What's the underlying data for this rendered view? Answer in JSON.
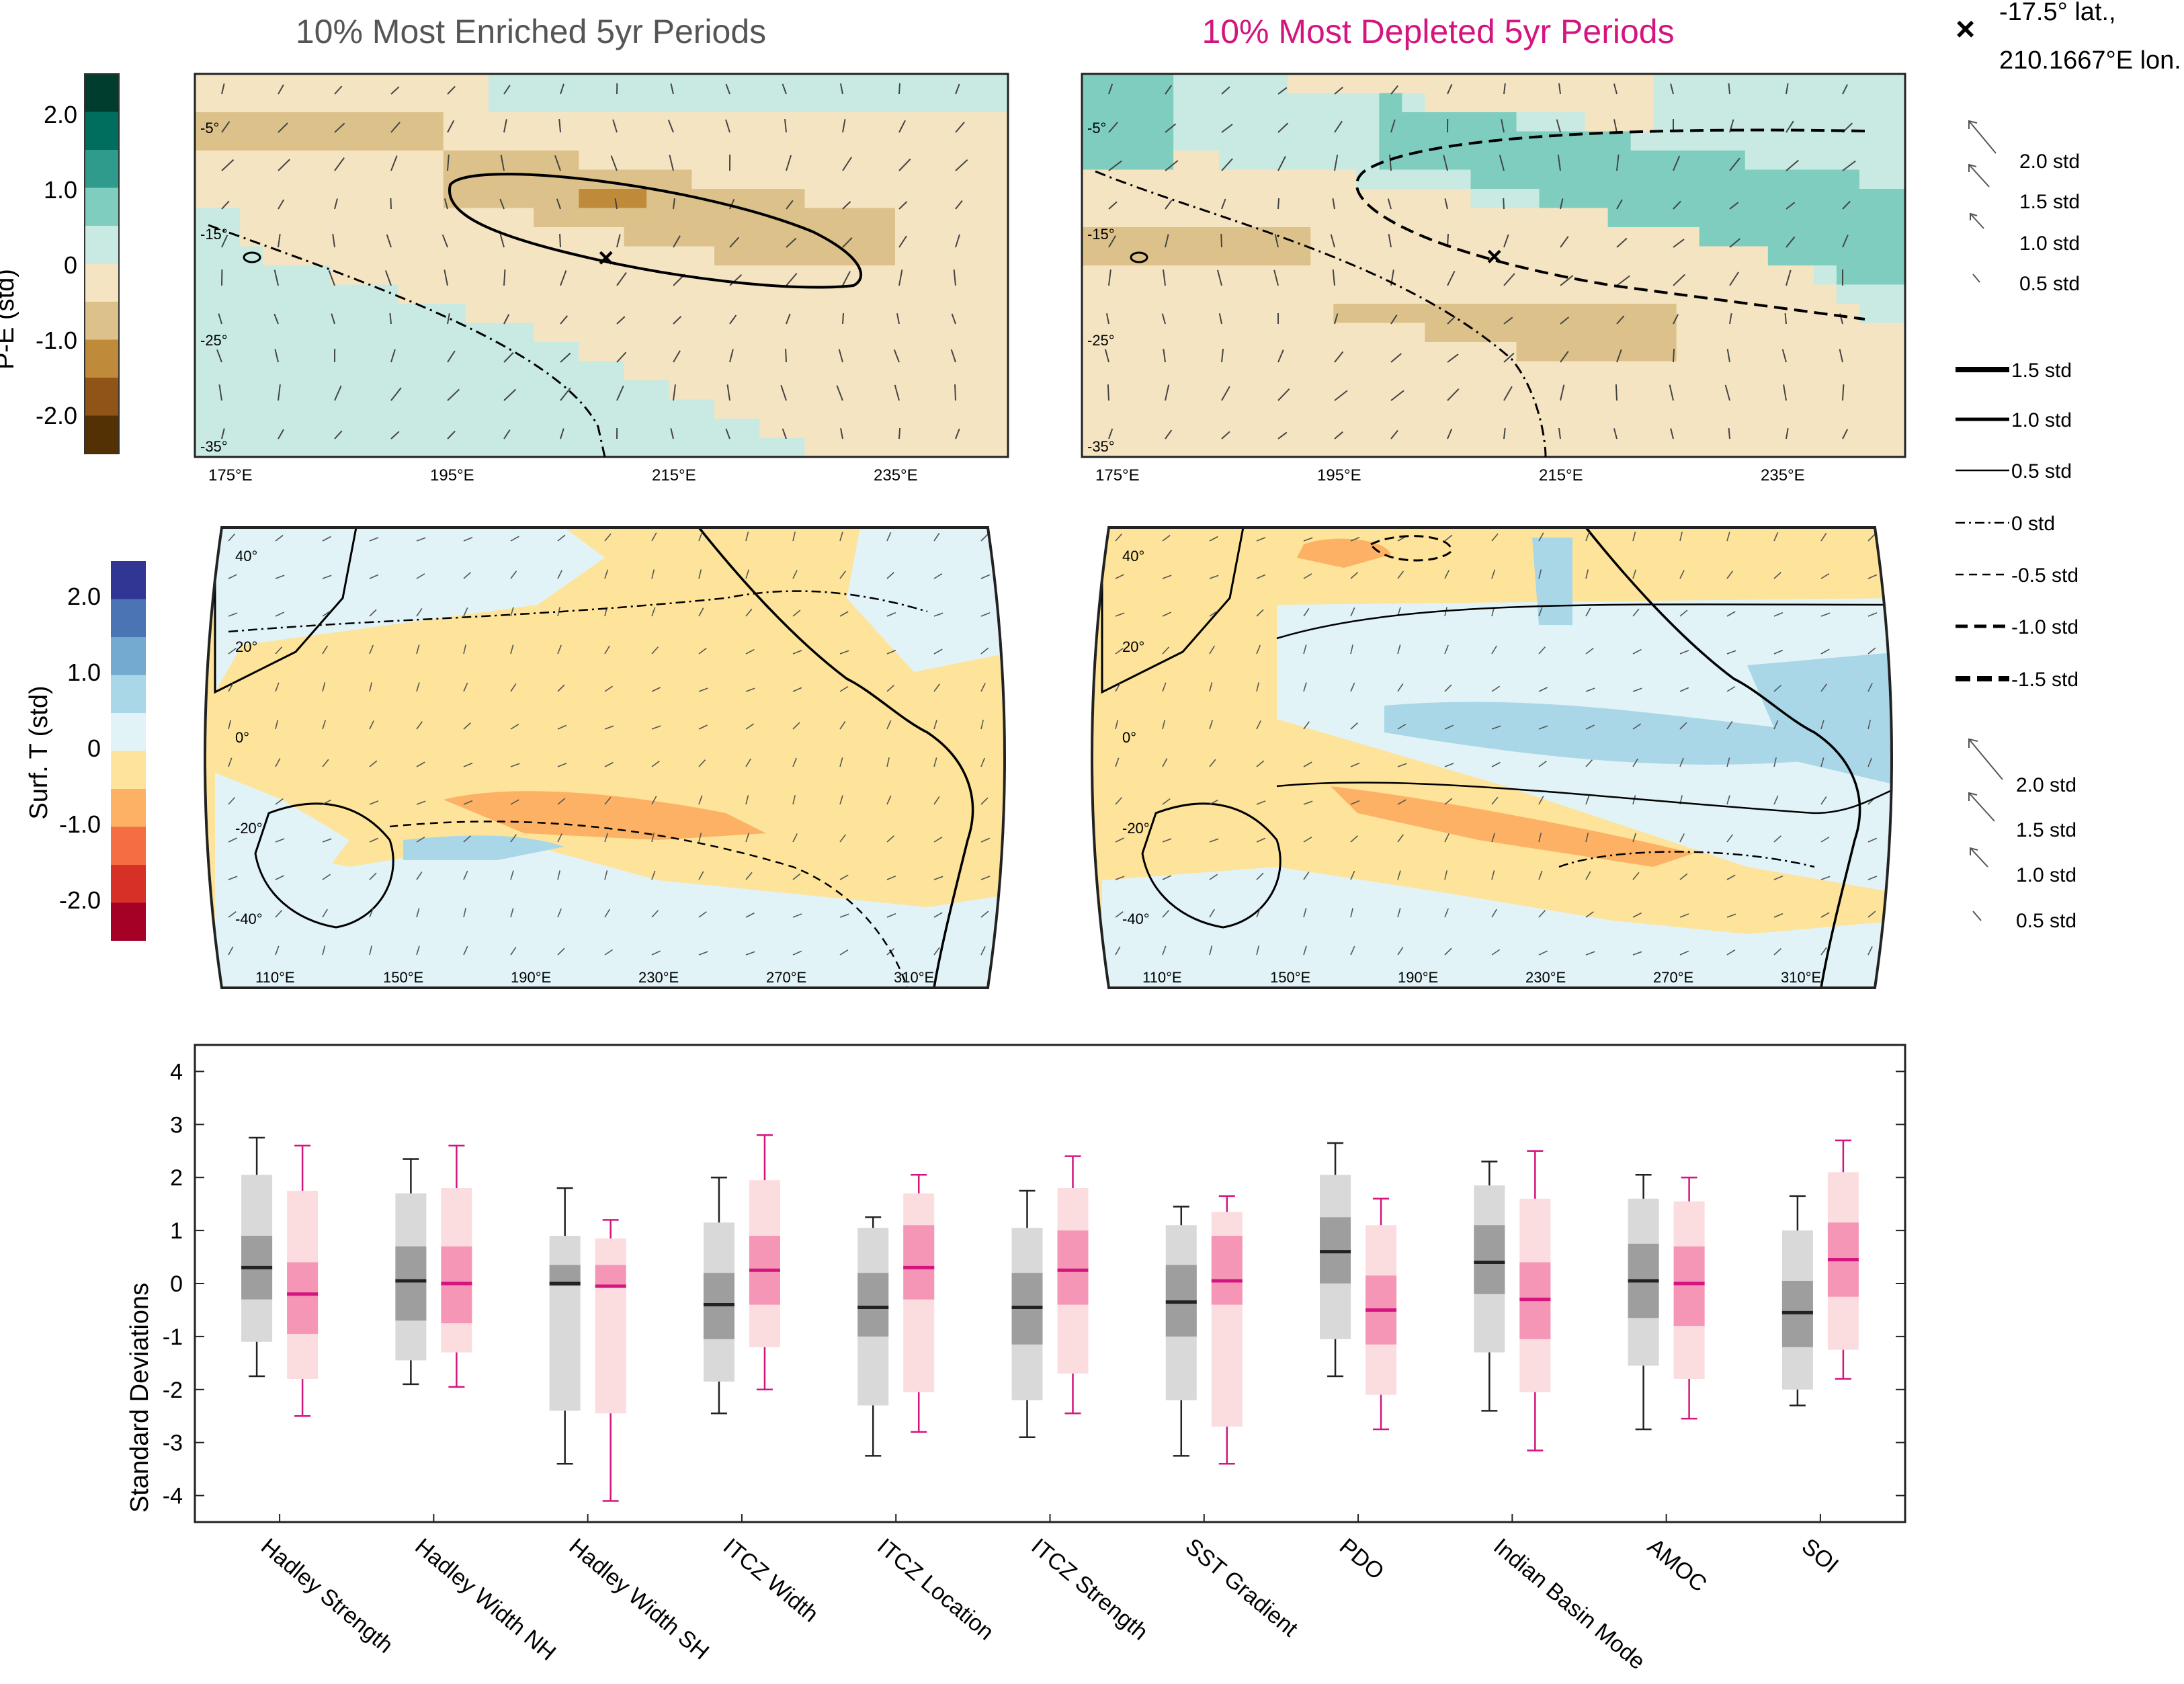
{
  "titles": {
    "enriched": "10% Most Enriched 5yr Periods",
    "depleted": "10% Most Depleted 5yr Periods"
  },
  "colors": {
    "enriched": "#222222",
    "enriched_light_box": "#d9d9d9",
    "enriched_dark_box": "#9e9e9e",
    "depleted": "#d4147f",
    "depleted_light_box": "#fbdde0",
    "depleted_dark_box": "#f596b6"
  },
  "pe_colorbar": {
    "label": "P-E (std)",
    "ticks": [
      "2.0",
      "1.0",
      "0",
      "-1.0",
      "-2.0"
    ],
    "colors": [
      "#003d2e",
      "#006e5e",
      "#2f9b8c",
      "#7fcdbf",
      "#c8eae3",
      "#f5e4c2",
      "#dcc28a",
      "#bf8a3a",
      "#8f5416",
      "#543005"
    ]
  },
  "sst_colorbar": {
    "label": "Surf. T (std)",
    "ticks": [
      "2.0",
      "1.0",
      "0",
      "-1.0",
      "-2.0"
    ],
    "colors": [
      "#313695",
      "#4a74b4",
      "#74aad0",
      "#a9d7e8",
      "#e1f3f7",
      "#fde49a",
      "#fdb164",
      "#f46d43",
      "#d73027",
      "#a50026"
    ]
  },
  "pe_map": {
    "lat_ticks": [
      "-5°",
      "-15°",
      "-25°",
      "-35°"
    ],
    "lon_ticks": [
      "175°E",
      "195°E",
      "215°E",
      "235°E"
    ]
  },
  "sst_map": {
    "lat_ticks": [
      "40°",
      "20°",
      "0°",
      "-20°",
      "-40°"
    ],
    "lon_ticks": [
      "110°E",
      "150°E",
      "190°E",
      "230°E",
      "270°E",
      "310°E"
    ]
  },
  "marker_legend": {
    "symbol": "×",
    "line1": "-17.5° lat.,",
    "line2": "210.1667°E lon."
  },
  "wind_legend_top": [
    "2.0 std",
    "1.5 std",
    "1.0 std",
    "0.5 std"
  ],
  "contour_legend": [
    "1.5 std",
    "1.0 std",
    "0.5 std",
    "0 std",
    "-0.5 std",
    "-1.0 std",
    "-1.5 std"
  ],
  "wind_legend_bottom": [
    "2.0 std",
    "1.5 std",
    "1.0 std",
    "0.5 std"
  ],
  "chart_data": {
    "type": "boxplot",
    "ylabel": "Standard Deviations",
    "ylim": [
      -4.5,
      4.5
    ],
    "yticks": [
      4,
      3,
      2,
      1,
      0,
      -1,
      -2,
      -3,
      -4
    ],
    "categories": [
      "Hadley Strength",
      "Hadley Width NH",
      "Hadley Width SH",
      "ITCZ Width",
      "ITCZ Location",
      "ITCZ Strength",
      "SST Gradient",
      "PDO",
      "Indian Basin Mode",
      "AMOC",
      "SOI"
    ],
    "series": [
      {
        "stats": [
          {
            "whisker_low": -1.75,
            "p10": -1.1,
            "q1": -0.3,
            "median": 0.3,
            "q3": 0.9,
            "p90": 2.05,
            "whisker_high": 2.75
          },
          {
            "whisker_low": -1.9,
            "p10": -1.45,
            "q1": -0.7,
            "median": 0.05,
            "q3": 0.7,
            "p90": 1.7,
            "whisker_high": 2.35
          },
          {
            "whisker_low": -3.4,
            "p10": -2.4,
            "q1": -0.05,
            "median": 0.0,
            "q3": 0.35,
            "p90": 0.9,
            "whisker_high": 1.8
          },
          {
            "whisker_low": -2.45,
            "p10": -1.85,
            "q1": -1.05,
            "median": -0.4,
            "q3": 0.2,
            "p90": 1.15,
            "whisker_high": 2.0
          },
          {
            "whisker_low": -3.25,
            "p10": -2.3,
            "q1": -1.0,
            "median": -0.45,
            "q3": 0.2,
            "p90": 1.05,
            "whisker_high": 1.25
          },
          {
            "whisker_low": -2.9,
            "p10": -2.2,
            "q1": -1.15,
            "median": -0.45,
            "q3": 0.2,
            "p90": 1.05,
            "whisker_high": 1.75
          },
          {
            "whisker_low": -3.25,
            "p10": -2.2,
            "q1": -1.0,
            "median": -0.35,
            "q3": 0.35,
            "p90": 1.1,
            "whisker_high": 1.45
          },
          {
            "whisker_low": -1.75,
            "p10": -1.05,
            "q1": 0.0,
            "median": 0.6,
            "q3": 1.25,
            "p90": 2.05,
            "whisker_high": 2.65
          },
          {
            "whisker_low": -2.4,
            "p10": -1.3,
            "q1": -0.2,
            "median": 0.4,
            "q3": 1.1,
            "p90": 1.85,
            "whisker_high": 2.3
          },
          {
            "whisker_low": -2.75,
            "p10": -1.55,
            "q1": -0.65,
            "median": 0.05,
            "q3": 0.75,
            "p90": 1.6,
            "whisker_high": 2.05
          },
          {
            "whisker_low": -2.3,
            "p10": -2.0,
            "q1": -1.2,
            "median": -0.55,
            "q3": 0.05,
            "p90": 1.0,
            "whisker_high": 1.65
          }
        ]
      },
      {
        "stats": [
          {
            "whisker_low": -2.5,
            "p10": -1.8,
            "q1": -0.95,
            "median": -0.2,
            "q3": 0.4,
            "p90": 1.75,
            "whisker_high": 2.6
          },
          {
            "whisker_low": -1.95,
            "p10": -1.3,
            "q1": -0.75,
            "median": 0.0,
            "q3": 0.7,
            "p90": 1.8,
            "whisker_high": 2.6
          },
          {
            "whisker_low": -4.1,
            "p10": -2.45,
            "q1": -0.05,
            "median": -0.05,
            "q3": 0.35,
            "p90": 0.85,
            "whisker_high": 1.2
          },
          {
            "whisker_low": -2.0,
            "p10": -1.2,
            "q1": -0.4,
            "median": 0.25,
            "q3": 0.9,
            "p90": 1.95,
            "whisker_high": 2.8
          },
          {
            "whisker_low": -2.8,
            "p10": -2.05,
            "q1": -0.3,
            "median": 0.3,
            "q3": 1.1,
            "p90": 1.7,
            "whisker_high": 2.05
          },
          {
            "whisker_low": -2.45,
            "p10": -1.7,
            "q1": -0.4,
            "median": 0.25,
            "q3": 1.0,
            "p90": 1.8,
            "whisker_high": 2.4
          },
          {
            "whisker_low": -3.4,
            "p10": -2.7,
            "q1": -0.4,
            "median": 0.05,
            "q3": 0.9,
            "p90": 1.35,
            "whisker_high": 1.65
          },
          {
            "whisker_low": -2.75,
            "p10": -2.1,
            "q1": -1.15,
            "median": -0.5,
            "q3": 0.15,
            "p90": 1.1,
            "whisker_high": 1.6
          },
          {
            "whisker_low": -3.15,
            "p10": -2.05,
            "q1": -1.05,
            "median": -0.3,
            "q3": 0.4,
            "p90": 1.6,
            "whisker_high": 2.5
          },
          {
            "whisker_low": -2.55,
            "p10": -1.8,
            "q1": -0.8,
            "median": 0.0,
            "q3": 0.7,
            "p90": 1.55,
            "whisker_high": 2.0
          },
          {
            "whisker_low": -1.8,
            "p10": -1.25,
            "q1": -0.25,
            "median": 0.45,
            "q3": 1.15,
            "p90": 2.1,
            "whisker_high": 2.7
          }
        ]
      }
    ]
  }
}
